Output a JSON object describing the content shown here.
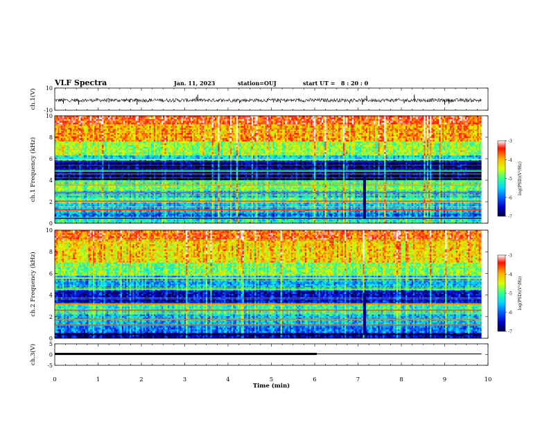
{
  "header": {
    "title": "VLF Spectra",
    "date": "Jan. 11, 2023",
    "station": "station=OUJ",
    "start": "start UT =   8 : 20 : 0"
  },
  "colors": {
    "colormap": [
      "#000040",
      "#0000c8",
      "#0060ff",
      "#00d8ff",
      "#30ff90",
      "#d8ff00",
      "#ffb000",
      "#ff1000",
      "#ffffff"
    ],
    "trace": "#000000"
  },
  "chart_data": [
    {
      "type": "line",
      "panel": "ch1-waveform",
      "ylabel": "ch.1(V)",
      "ylim": [
        -10,
        10
      ],
      "yticks": [
        "10",
        "-10"
      ],
      "baseline": -1,
      "spikes": [
        {
          "x": 0.2,
          "y": -4
        },
        {
          "x": 0.55,
          "y": -5
        },
        {
          "x": 1.25,
          "y": -3
        },
        {
          "x": 1.9,
          "y": -5
        },
        {
          "x": 3.3,
          "y": 4
        },
        {
          "x": 5.05,
          "y": -3
        },
        {
          "x": 7.1,
          "y": -5
        },
        {
          "x": 7.2,
          "y": 3
        },
        {
          "x": 8.3,
          "y": 4
        },
        {
          "x": 9.0,
          "y": -5
        },
        {
          "x": 9.1,
          "y": -4
        }
      ]
    },
    {
      "type": "heatmap",
      "panel": "ch1-spectrogram",
      "ylabel": "ch.1 Frequency (kHz)",
      "ylim": [
        0,
        10
      ],
      "yticks": [
        "0",
        "2",
        "4",
        "6",
        "8",
        "10"
      ],
      "xlim": [
        0,
        9.85
      ],
      "colorbar": {
        "label": "log(PSD)(V²/Hz)",
        "range": [
          -7,
          -3
        ],
        "ticks": [
          "-3",
          "-4",
          "-5",
          "-6",
          "-7"
        ]
      },
      "bands": [
        {
          "f0": 9.2,
          "f1": 10.0,
          "level": -3.6
        },
        {
          "f0": 7.6,
          "f1": 9.2,
          "level": -4.0
        },
        {
          "f0": 6.3,
          "f1": 7.6,
          "level": -4.7
        },
        {
          "f0": 5.8,
          "f1": 6.3,
          "level": -5.6
        },
        {
          "f0": 4.0,
          "f1": 5.8,
          "level": -6.8
        },
        {
          "f0": 3.5,
          "f1": 4.0,
          "level": -5.2
        },
        {
          "f0": 3.0,
          "f1": 3.5,
          "level": -4.9
        },
        {
          "f0": 2.4,
          "f1": 3.0,
          "level": -5.6
        },
        {
          "f0": 1.9,
          "f1": 2.4,
          "level": -5.0
        },
        {
          "f0": 1.0,
          "f1": 1.9,
          "level": -5.6
        },
        {
          "f0": 0.6,
          "f1": 1.0,
          "level": -6.0
        },
        {
          "f0": 0.0,
          "f1": 0.6,
          "level": -5.3
        }
      ],
      "lines": [
        {
          "f": 0.45,
          "level": -7.0
        },
        {
          "f": 1.25,
          "level": -3.6
        },
        {
          "f": 2.05,
          "level": -3.7
        },
        {
          "f": 2.85,
          "level": -3.4
        },
        {
          "f": 3.55,
          "level": -3.9
        },
        {
          "f": 4.85,
          "level": -5.0
        },
        {
          "f": 5.95,
          "level": -4.6
        }
      ],
      "impulses": [
        {
          "x": 7.15,
          "f0": 0.4,
          "f1": 4.4,
          "level": -6.8
        }
      ]
    },
    {
      "type": "heatmap",
      "panel": "ch2-spectrogram",
      "ylabel": "ch.2 Frequency (kHz)",
      "ylim": [
        0,
        10
      ],
      "yticks": [
        "0",
        "2",
        "4",
        "6",
        "8",
        "10"
      ],
      "xlim": [
        0,
        9.85
      ],
      "colorbar": {
        "label": "log(PSD)(V²/Hz)",
        "range": [
          -7,
          -3
        ],
        "ticks": [
          "-3",
          "-4",
          "-5",
          "-6",
          "-7"
        ]
      },
      "bands": [
        {
          "f0": 9.0,
          "f1": 10.0,
          "level": -3.7
        },
        {
          "f0": 7.0,
          "f1": 9.0,
          "level": -4.2
        },
        {
          "f0": 5.8,
          "f1": 7.0,
          "level": -4.8
        },
        {
          "f0": 4.4,
          "f1": 5.8,
          "level": -5.7
        },
        {
          "f0": 3.2,
          "f1": 4.4,
          "level": -6.5
        },
        {
          "f0": 2.2,
          "f1": 3.2,
          "level": -5.2
        },
        {
          "f0": 1.3,
          "f1": 2.2,
          "level": -5.6
        },
        {
          "f0": 0.5,
          "f1": 1.3,
          "level": -5.9
        },
        {
          "f0": 0.0,
          "f1": 0.5,
          "level": -6.6
        }
      ],
      "lines": [
        {
          "f": 0.35,
          "level": -7.0
        },
        {
          "f": 1.2,
          "level": -3.6
        },
        {
          "f": 1.75,
          "level": -3.8
        },
        {
          "f": 2.6,
          "level": -3.4
        },
        {
          "f": 3.15,
          "level": -3.9
        },
        {
          "f": 4.55,
          "level": -4.7
        },
        {
          "f": 5.55,
          "level": -4.6
        }
      ],
      "impulses": [
        {
          "x": 7.15,
          "f0": 0.3,
          "f1": 4.2,
          "level": -6.8
        }
      ]
    },
    {
      "type": "line",
      "panel": "ch3-level",
      "ylabel": "ch.3(V)",
      "ylim": [
        -5,
        5
      ],
      "yticks": [
        "5",
        "0",
        "-5"
      ],
      "segments": [
        {
          "x0": 0,
          "x1": 6.05,
          "y": 0.3,
          "weight": "bold"
        },
        {
          "x0": 6.05,
          "x1": 9.85,
          "y": 0.3,
          "weight": "thin"
        }
      ],
      "xlabel": "Time (min)",
      "xlim": [
        0,
        10
      ],
      "xticks": [
        "0",
        "1",
        "2",
        "3",
        "4",
        "5",
        "6",
        "7",
        "8",
        "9",
        "10"
      ]
    }
  ]
}
